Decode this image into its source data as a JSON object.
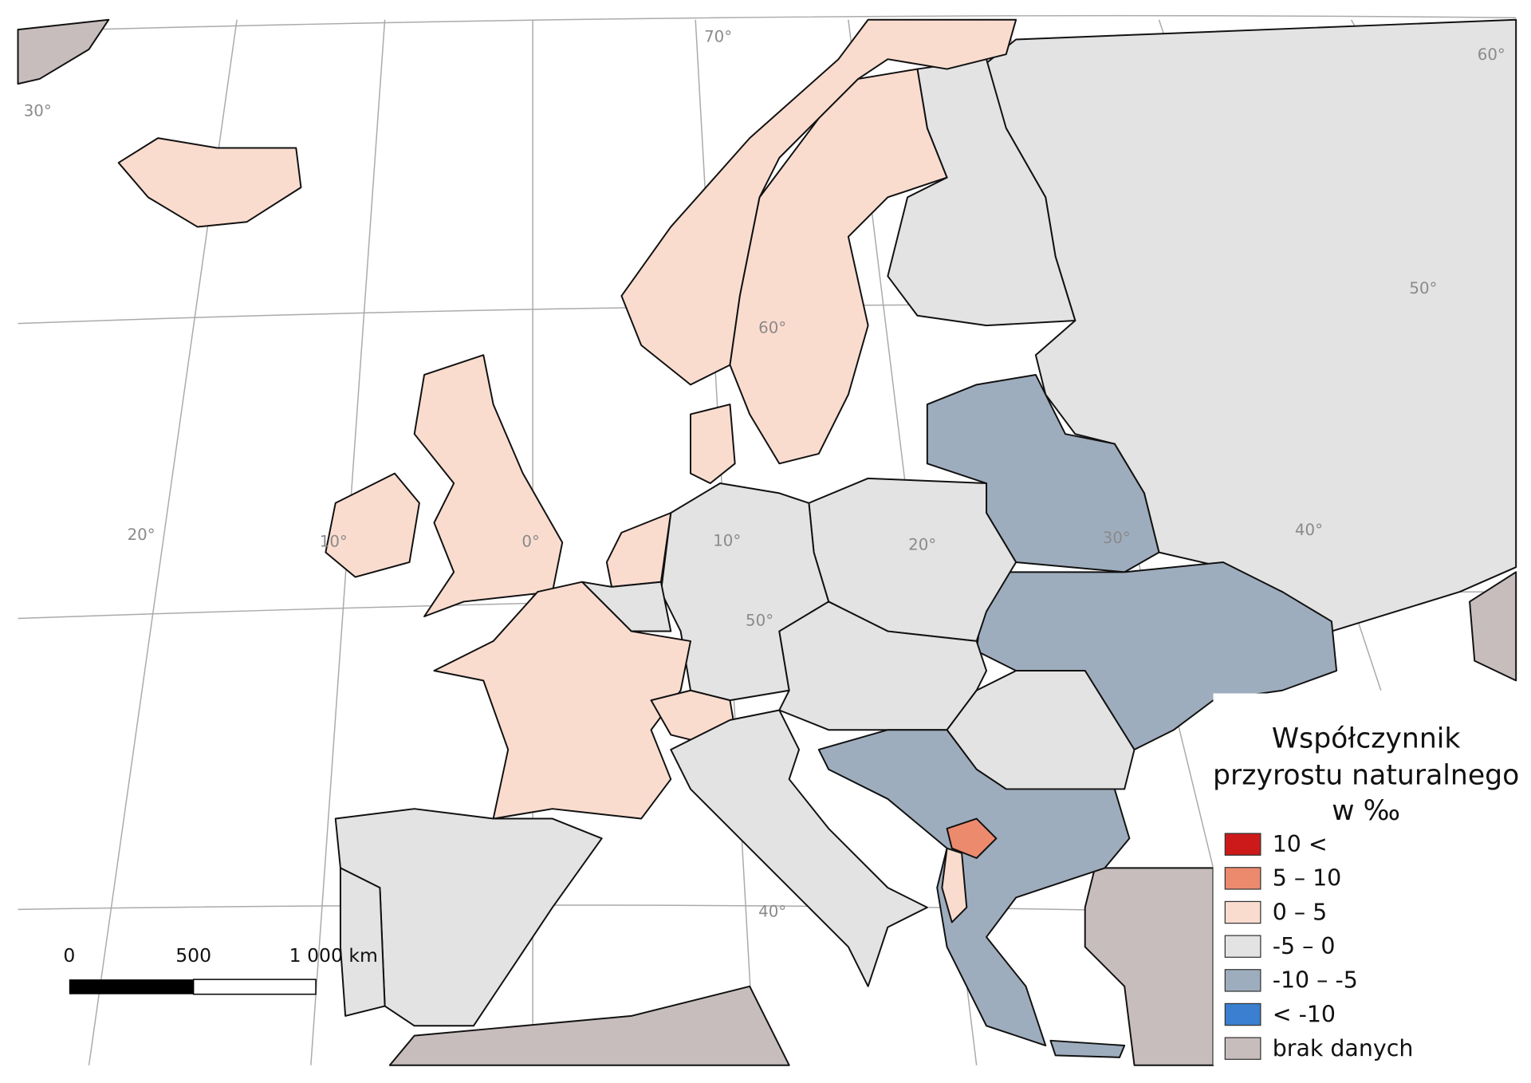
{
  "legend": {
    "title_lines": [
      "Współczynnik",
      "przyrostu naturalnego",
      "w ‰"
    ],
    "items": [
      {
        "label": "10 <",
        "color": "#cc1a1a"
      },
      {
        "label": "5 – 10",
        "color": "#ec8a6e"
      },
      {
        "label": "0 – 5",
        "color": "#fadccf"
      },
      {
        "label": "-5 – 0",
        "color": "#e3e3e3"
      },
      {
        "label": "-10 – -5",
        "color": "#9eadbd"
      },
      {
        "label": "< -10",
        "color": "#3a7fd0"
      },
      {
        "label": "brak danych",
        "color": "#c8bdbd"
      }
    ]
  },
  "graticule_labels": [
    "70°",
    "30°",
    "60°",
    "50°",
    "20°",
    "10°",
    "0°",
    "10°",
    "20°",
    "30°",
    "40°",
    "50°",
    "40°",
    "60°"
  ],
  "scale_bar": {
    "labels": [
      "0",
      "500",
      "1 000 km"
    ]
  }
}
